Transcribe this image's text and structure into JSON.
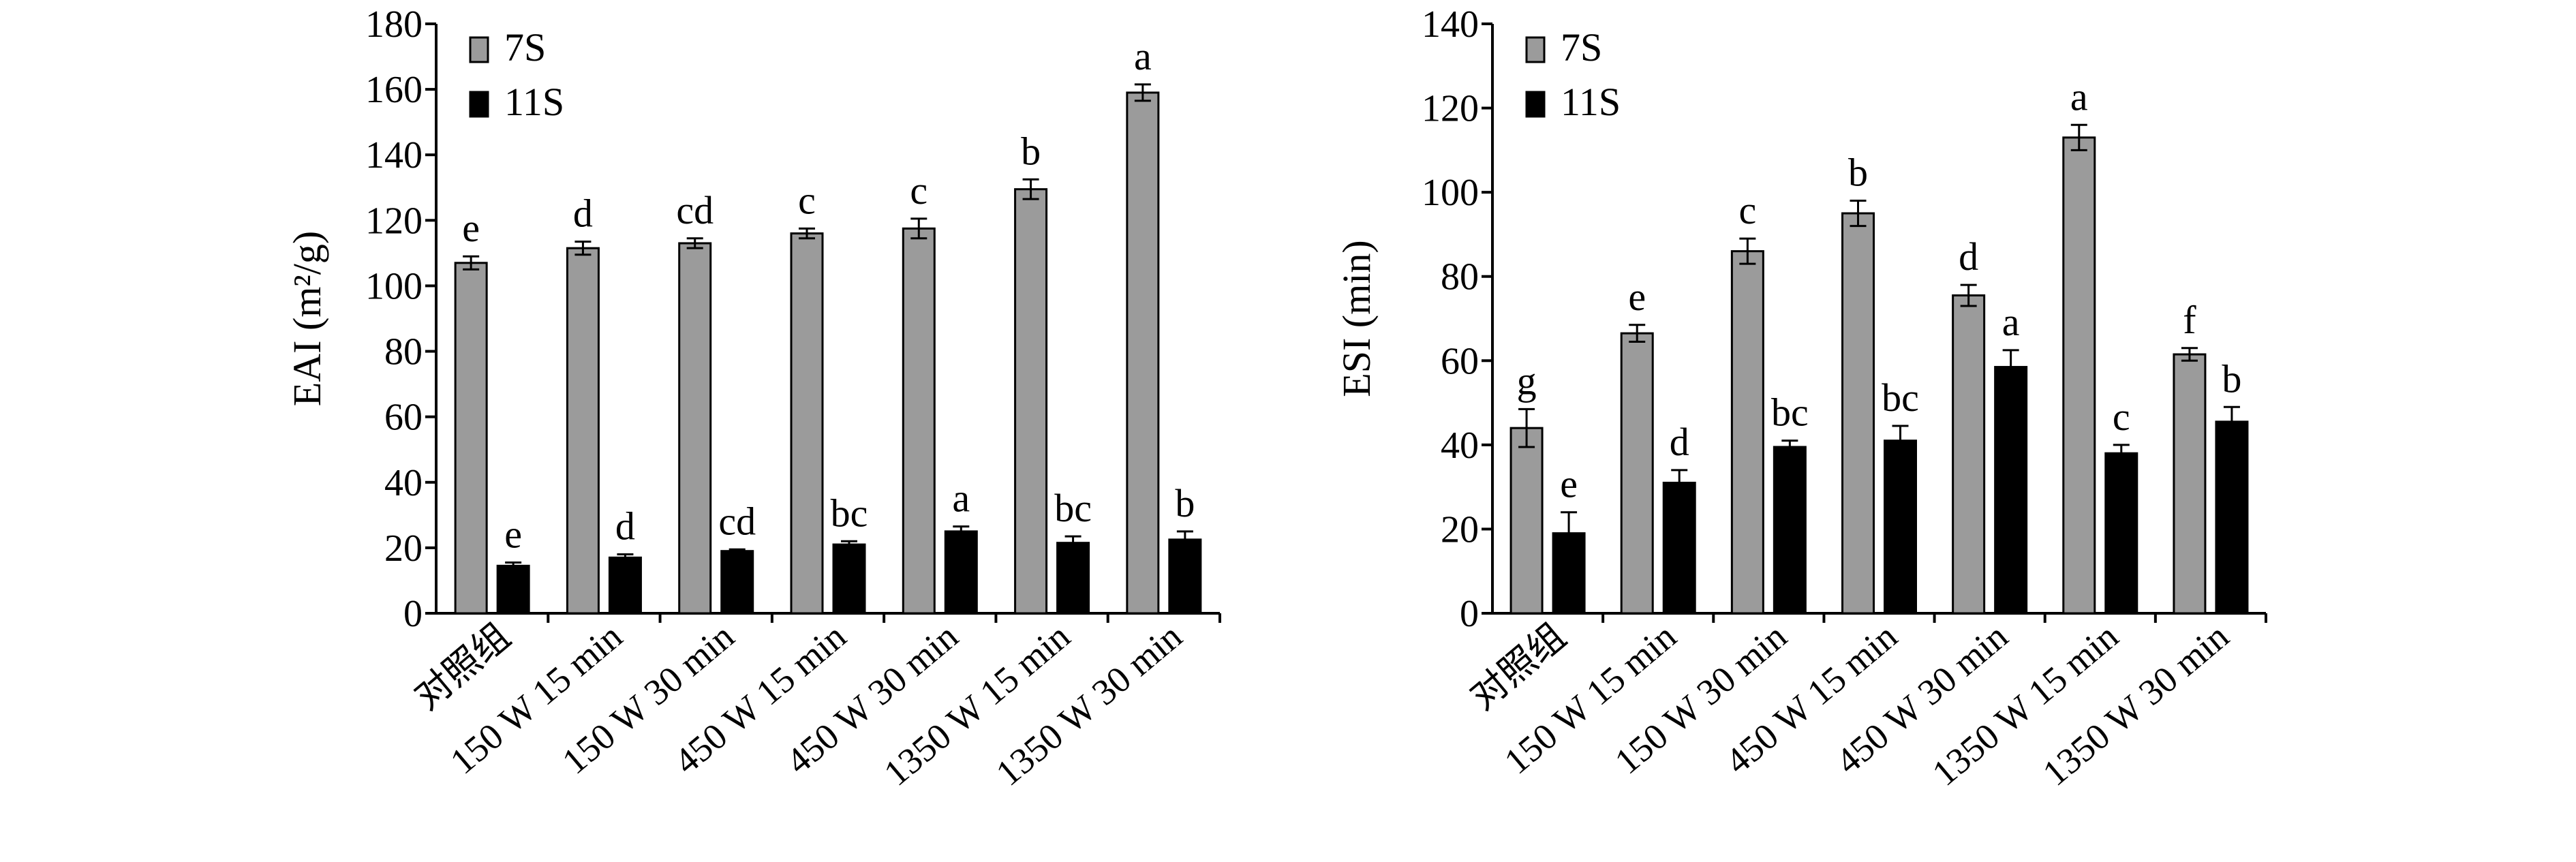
{
  "colors": {
    "s7": "#9b9b9b",
    "s11": "#000000",
    "axis": "#000000"
  },
  "chart_data": [
    {
      "type": "bar",
      "ylabel": "EAI (m²/g)",
      "ylim": [
        0,
        180
      ],
      "yticks": [
        0,
        20,
        40,
        60,
        80,
        100,
        120,
        140,
        160,
        180
      ],
      "legend": "top-left",
      "categories": [
        "对照组",
        "150 W 15 min",
        "150 W 30 min",
        "450 W 15 min",
        "450 W 30 min",
        "1350 W 15 min",
        "1350 W 30 min"
      ],
      "series": [
        {
          "name": "7S",
          "values": [
            107,
            111.5,
            113,
            116,
            117.5,
            129.5,
            159
          ],
          "errors": [
            2,
            2,
            1.5,
            1.5,
            3,
            3,
            2.5
          ],
          "labels": [
            "e",
            "d",
            "cd",
            "c",
            "c",
            "b",
            "a"
          ]
        },
        {
          "name": "11S",
          "values": [
            14.5,
            17,
            19,
            21,
            25,
            21.5,
            22.5
          ],
          "errors": [
            1,
            1,
            0.5,
            1,
            1.5,
            2,
            2.5
          ],
          "labels": [
            "e",
            "d",
            "cd",
            "bc",
            "a",
            "bc",
            "b"
          ]
        }
      ]
    },
    {
      "type": "bar",
      "ylabel": "ESI (min)",
      "ylim": [
        0,
        140
      ],
      "yticks": [
        0,
        20,
        40,
        60,
        80,
        100,
        120,
        140
      ],
      "legend": "top-left",
      "categories": [
        "对照组",
        "150 W 15 min",
        "150 W 30 min",
        "450 W 15 min",
        "450 W 30 min",
        "1350 W 15 min",
        "1350 W 30 min"
      ],
      "series": [
        {
          "name": "7S",
          "values": [
            44,
            66.5,
            86,
            95,
            75.5,
            113,
            61.5
          ],
          "errors": [
            4.5,
            2,
            3,
            3,
            2.5,
            3,
            1.5
          ],
          "labels": [
            "g",
            "e",
            "c",
            "b",
            "d",
            "a",
            "f"
          ]
        },
        {
          "name": "11S",
          "values": [
            19,
            31,
            39.5,
            41,
            58.5,
            38,
            45.5
          ],
          "errors": [
            5,
            3,
            1.5,
            3.5,
            4,
            2,
            3.5
          ],
          "labels": [
            "e",
            "d",
            "bc",
            "bc",
            "a",
            "c",
            "b"
          ]
        }
      ]
    }
  ]
}
